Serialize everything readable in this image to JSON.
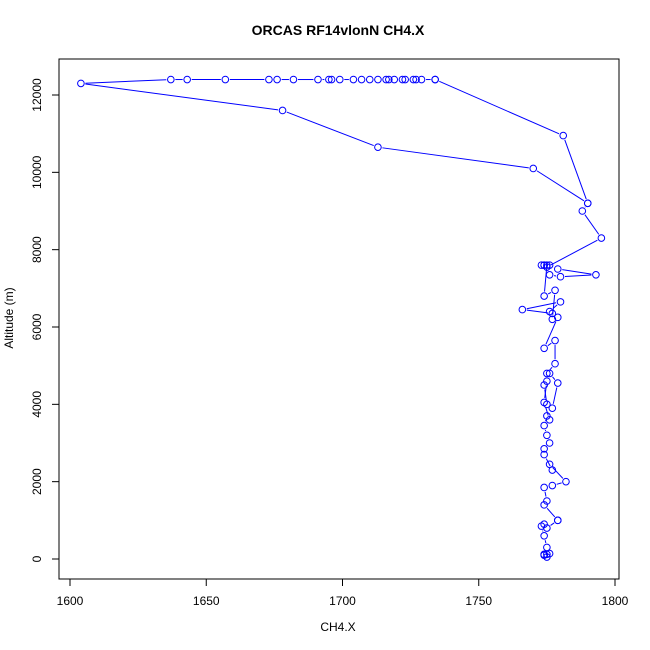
{
  "chart_data": {
    "type": "line",
    "title": "ORCAS RF14vlonN CH4.X",
    "xlabel": "CH4.X",
    "ylabel": "Altitude (m)",
    "xlim": [
      1600,
      1800
    ],
    "ylim": [
      0,
      12500
    ],
    "x_ticks": [
      1600,
      1650,
      1700,
      1750,
      1800
    ],
    "y_ticks": [
      0,
      2000,
      4000,
      6000,
      8000,
      10000,
      12000
    ],
    "series_color": "#0000ff",
    "markers": "open-circle",
    "series": [
      {
        "x": [
          1775,
          1774,
          1775,
          1776,
          1774,
          1775,
          1774,
          1773,
          1774,
          1775,
          1779,
          1779,
          1774,
          1775,
          1774,
          1777,
          1782,
          1776,
          1777,
          1774,
          1774,
          1776,
          1775,
          1774,
          1775,
          1776,
          1774,
          1775,
          1774,
          1775,
          1777,
          1779,
          1776,
          1775,
          1778,
          1778,
          1774,
          1779,
          1777,
          1766,
          1780,
          1776,
          1777,
          1778,
          1774,
          1775,
          1776,
          1779,
          1793,
          1780,
          1776,
          1774,
          1773,
          1774,
          1775,
          1795,
          1788,
          1790,
          1770,
          1713,
          1678,
          1604,
          1637,
          1643,
          1657,
          1673,
          1676,
          1682,
          1691,
          1695,
          1696,
          1699,
          1704,
          1707,
          1710,
          1713,
          1716,
          1717,
          1719,
          1722,
          1723,
          1726,
          1727,
          1729,
          1734,
          1734,
          1781,
          1790
        ],
        "y": [
          50,
          100,
          120,
          140,
          120,
          300,
          600,
          850,
          900,
          800,
          1000,
          1000,
          1400,
          1500,
          1850,
          1900,
          2000,
          2450,
          2300,
          2700,
          2850,
          3000,
          3200,
          3450,
          3700,
          3600,
          4050,
          4600,
          4500,
          4000,
          3900,
          4550,
          4800,
          4800,
          5050,
          5650,
          5450,
          6250,
          6350,
          6450,
          6650,
          6400,
          6200,
          6950,
          6800,
          7600,
          7600,
          7500,
          7350,
          7300,
          7350,
          7600,
          7600,
          7600,
          7550,
          8300,
          9000,
          9200,
          10100,
          10650,
          11600,
          12300,
          12400,
          12400,
          12400,
          12400,
          12400,
          12400,
          12400,
          12400,
          12400,
          12400,
          12400,
          12400,
          12400,
          12400,
          12400,
          12400,
          12400,
          12400,
          12400,
          12400,
          12400,
          12400,
          12400,
          12400,
          10950,
          9200
        ]
      }
    ]
  }
}
